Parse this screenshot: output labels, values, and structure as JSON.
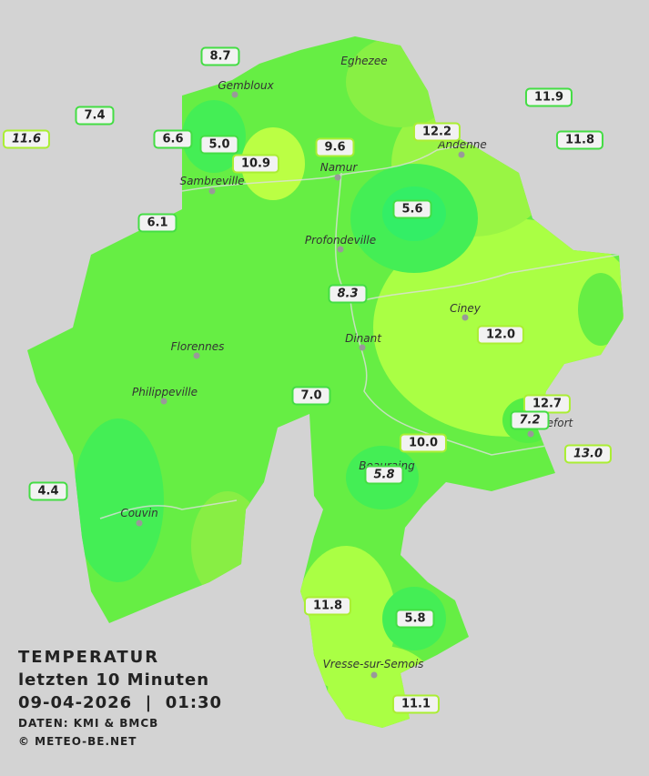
{
  "stations": [
    "8.7",
    "7.4",
    "11.6",
    "6.6",
    "5.0",
    "10.9",
    "9.6",
    "12.2",
    "11.9",
    "11.8",
    "6.1",
    "5.6",
    "8.3",
    "12.0",
    "7.0",
    "12.7",
    "7.2",
    "13.0",
    "10.0",
    "5.8",
    "4.4",
    "11.8",
    "5.8",
    "11.1"
  ],
  "cities": [
    "Eghezee",
    "Gembloux",
    "Andenne",
    "Namur",
    "Sambreville",
    "Profondeville",
    "Ciney",
    "Dinant",
    "Florennes",
    "Philippeville",
    "Rochefort",
    "Beauraing",
    "Couvin",
    "Vresse-sur-Semois"
  ],
  "legend": {
    "title": "TEMPERATUR",
    "period": "letzten 10 Minuten",
    "datetime": "09-04-2026  |  01:30",
    "source": "DATEN: KMI & BMCB",
    "copyright": "© METEO-BE.NET"
  }
}
